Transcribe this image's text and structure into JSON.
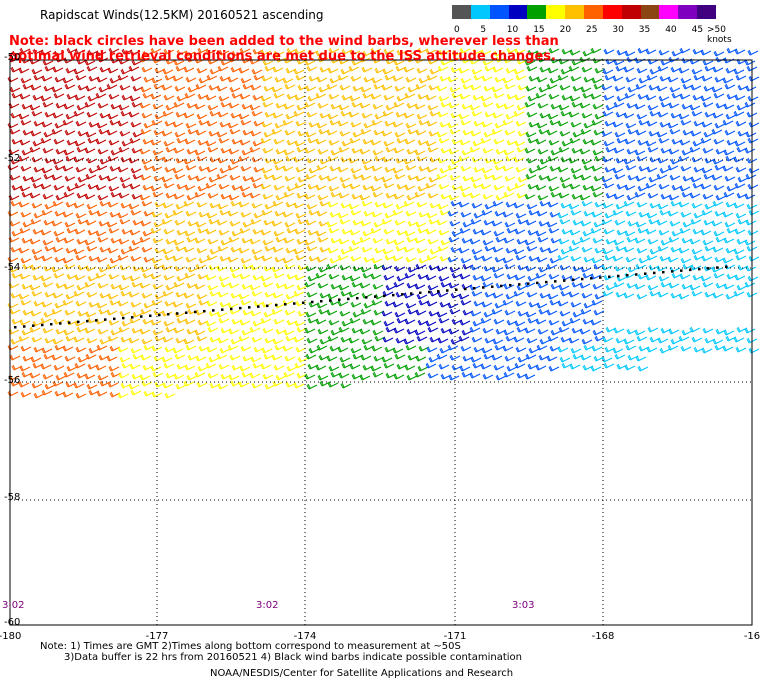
{
  "title": "Rapidscat Winds(12.5KM) 20160521 ascending",
  "note": "Note: black circles have been added to the wind barbs, wherever less than optimal wind retrieval conditions are met due to the ISS attitude changes.",
  "legend": {
    "units": ">50 knots",
    "labels": [
      "0",
      "5",
      "10",
      "15",
      "20",
      "25",
      "30",
      "35",
      "40",
      "45"
    ],
    "colors": [
      "#555555",
      "#00c8ff",
      "#0055ff",
      "#0000c0",
      "#00a000",
      "#ffff00",
      "#ffc000",
      "#ff6000",
      "#ff0000",
      "#c00000",
      "#8b4513",
      "#ff00ff",
      "#8000c0",
      "#400080"
    ]
  },
  "lat_labels": [
    "-50",
    "-52",
    "-54",
    "-56",
    "-58",
    "-60"
  ],
  "lon_labels": [
    "-180",
    "-177",
    "-174",
    "-171",
    "-168",
    "-16"
  ],
  "time_labels": [
    "3:02",
    "3:02",
    "3:03"
  ],
  "footer": {
    "line1": "Note: 1) Times are GMT 2)Times along bottom correspond to measurement at ~50S",
    "line2": "3)Data buffer is 22 hrs from 20160521 4) Black wind barbs indicate possible contamination",
    "credit": "NOAA/NESDIS/Center for Satellite Applications and Research"
  }
}
